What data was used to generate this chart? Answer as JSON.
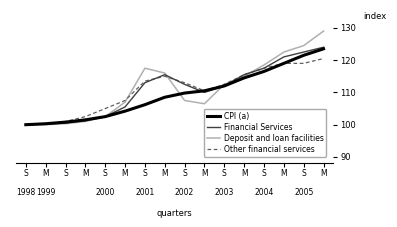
{
  "ylabel": "index",
  "xlabel": "quarters",
  "ylim": [
    88,
    133
  ],
  "yticks": [
    90,
    100,
    110,
    120,
    130
  ],
  "background_color": "#ffffff",
  "legend_labels": [
    "CPI (a)",
    "Financial Services",
    "Deposit and loan facilities",
    "Other financial services"
  ],
  "x_values": [
    0,
    1,
    2,
    3,
    4,
    5,
    6,
    7,
    8,
    9,
    10,
    11,
    12,
    13,
    14,
    15
  ],
  "sm_labels": [
    "S",
    "M",
    "S",
    "M",
    "S",
    "M",
    "S",
    "M",
    "S",
    "M",
    "S",
    "M",
    "S",
    "M",
    "S",
    "M"
  ],
  "year_label_data": [
    [
      0,
      "1998"
    ],
    [
      1,
      "1999"
    ],
    [
      4,
      "2000"
    ],
    [
      6,
      "2001"
    ],
    [
      8,
      "2002"
    ],
    [
      10,
      "2003"
    ],
    [
      12,
      "2004"
    ],
    [
      14,
      "2005"
    ]
  ],
  "cpi": [
    100.0,
    100.3,
    100.8,
    101.5,
    102.5,
    104.2,
    106.2,
    108.5,
    109.8,
    110.5,
    112.0,
    114.5,
    116.5,
    119.0,
    121.5,
    123.5
  ],
  "financial_services": [
    100.0,
    100.2,
    100.5,
    101.2,
    102.5,
    105.5,
    113.0,
    115.5,
    112.5,
    110.0,
    112.0,
    115.5,
    117.5,
    121.0,
    122.5,
    124.0
  ],
  "deposit_loan": [
    100.0,
    100.0,
    100.3,
    101.0,
    102.5,
    107.0,
    117.5,
    116.0,
    107.5,
    106.5,
    112.5,
    115.0,
    118.5,
    122.5,
    124.5,
    129.0
  ],
  "other_financial": [
    100.0,
    100.2,
    101.0,
    102.5,
    105.0,
    107.5,
    113.5,
    115.0,
    113.0,
    110.5,
    112.5,
    115.5,
    117.5,
    119.0,
    119.0,
    120.5
  ]
}
